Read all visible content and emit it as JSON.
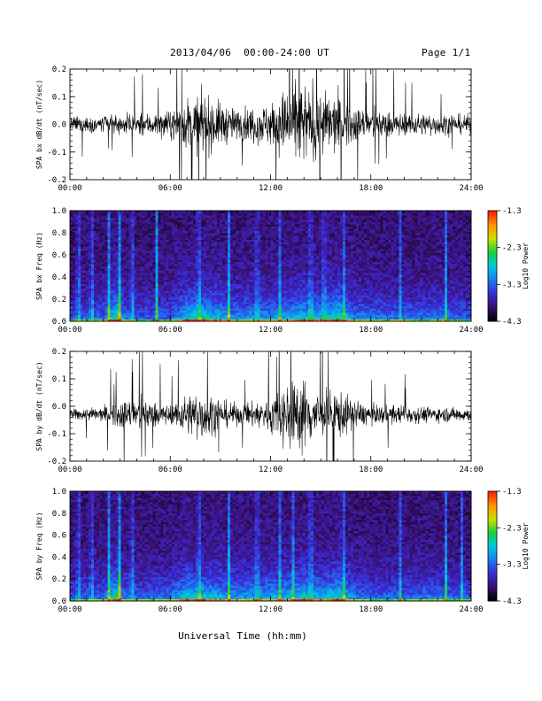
{
  "header": {
    "title": "2013/04/06  00:00-24:00 UT",
    "page": "Page 1/1"
  },
  "x_axis": {
    "label": "Universal Time (hh:mm)",
    "tick_labels": [
      "00:00",
      "06:00",
      "12:00",
      "18:00",
      "24:00"
    ]
  },
  "colorbar": {
    "label": "Log10 Power",
    "tick_labels": [
      "-1.3",
      "-2.3",
      "-3.3",
      "-4.3"
    ],
    "range": [
      -4.3,
      -1.3
    ],
    "colors": [
      "#000000",
      "#3a0f6e",
      "#3b2bd8",
      "#1a7df0",
      "#00c8e0",
      "#18d040",
      "#c8e000",
      "#ff9a00",
      "#ff2000"
    ]
  },
  "chart_data": [
    {
      "type": "line",
      "panel": "bx-timeseries",
      "ylabel": "SPA bx dB/dt (nT/sec)",
      "ylim": [
        -0.2,
        0.2
      ],
      "xlim_hours": [
        0,
        24
      ],
      "y_tick_labels": [
        "0.2",
        "0.1",
        "0.0",
        "-0.1",
        "-0.2"
      ],
      "baseline": 0.0,
      "activity_hours": [
        0,
        2,
        4,
        6,
        7,
        8,
        9,
        10,
        11,
        12,
        13,
        14,
        15,
        16,
        17,
        18,
        20,
        22,
        24
      ],
      "amplitude": [
        0.04,
        0.05,
        0.06,
        0.07,
        0.14,
        0.16,
        0.12,
        0.08,
        0.1,
        0.12,
        0.2,
        0.22,
        0.18,
        0.16,
        0.1,
        0.08,
        0.06,
        0.06,
        0.05
      ],
      "color": "#000000"
    },
    {
      "type": "heatmap",
      "panel": "bx-spectrogram",
      "ylabel": "SPA bx Freq (Hz)",
      "ylim": [
        0.0,
        1.0
      ],
      "xlim_hours": [
        0,
        24
      ],
      "y_tick_labels": [
        "1.0",
        "0.8",
        "0.6",
        "0.4",
        "0.2",
        "0.0"
      ],
      "zlim": [
        -4.3,
        -1.3
      ],
      "activity_hours": [
        0,
        2,
        2.8,
        3.2,
        4,
        6,
        7,
        8,
        10,
        12,
        13,
        14,
        15,
        16,
        17,
        18,
        20,
        22,
        24
      ],
      "activity": [
        0.35,
        0.4,
        0.9,
        0.45,
        0.35,
        0.4,
        0.7,
        0.75,
        0.5,
        0.55,
        0.6,
        0.7,
        0.6,
        0.8,
        0.5,
        0.45,
        0.4,
        0.45,
        0.35
      ],
      "spike_hours": [
        0.5,
        1.3,
        2.3,
        2.95,
        3.7,
        5.2,
        7.7,
        9.5,
        11.2,
        12.6,
        14.4,
        15.2,
        16.35,
        19.8,
        22.5
      ]
    },
    {
      "type": "line",
      "panel": "by-timeseries",
      "ylabel": "SPA by dB/dt (nT/sec)",
      "ylim": [
        -0.2,
        0.2
      ],
      "xlim_hours": [
        0,
        24
      ],
      "y_tick_labels": [
        "0.2",
        "0.1",
        "0.0",
        "-0.1",
        "-0.2"
      ],
      "baseline": -0.03,
      "activity_hours": [
        0,
        2,
        3,
        4,
        6,
        7,
        8,
        9,
        10,
        11,
        12,
        13,
        14,
        15,
        16,
        17,
        18,
        20,
        22,
        24
      ],
      "amplitude": [
        0.03,
        0.04,
        0.08,
        0.09,
        0.05,
        0.11,
        0.14,
        0.08,
        0.06,
        0.07,
        0.1,
        0.18,
        0.2,
        0.12,
        0.14,
        0.08,
        0.05,
        0.05,
        0.04,
        0.04
      ],
      "color": "#000000"
    },
    {
      "type": "heatmap",
      "panel": "by-spectrogram",
      "ylabel": "SPA by Freq (Hz)",
      "ylim": [
        0.0,
        1.0
      ],
      "xlim_hours": [
        0,
        24
      ],
      "y_tick_labels": [
        "1.0",
        "0.8",
        "0.6",
        "0.4",
        "0.2",
        "0.0"
      ],
      "zlim": [
        -4.3,
        -1.3
      ],
      "activity_hours": [
        0,
        2,
        2.8,
        3.2,
        4,
        6,
        7,
        8,
        10,
        12,
        13,
        14,
        15,
        16,
        17,
        18,
        20,
        22,
        24
      ],
      "activity": [
        0.35,
        0.4,
        0.9,
        0.45,
        0.4,
        0.45,
        0.75,
        0.7,
        0.55,
        0.6,
        0.65,
        0.75,
        0.6,
        0.8,
        0.5,
        0.4,
        0.4,
        0.45,
        0.35
      ],
      "spike_hours": [
        0.5,
        1.3,
        2.3,
        2.95,
        3.7,
        7.7,
        9.5,
        11.2,
        12.6,
        13.4,
        14.4,
        16.35,
        19.8,
        22.5,
        23.4
      ]
    }
  ]
}
